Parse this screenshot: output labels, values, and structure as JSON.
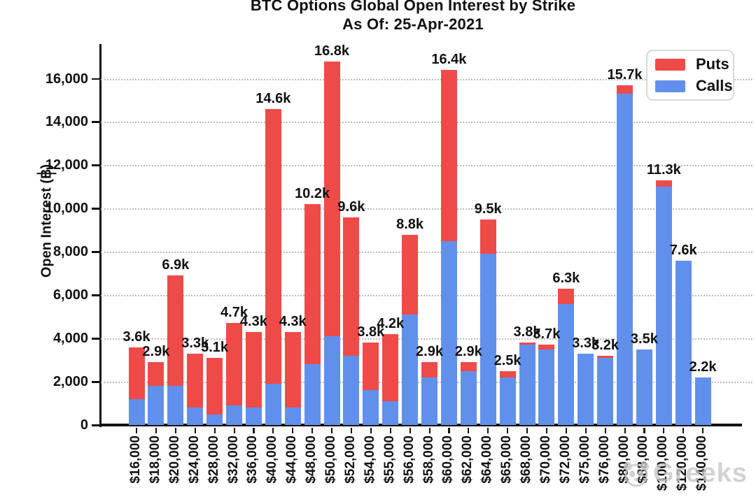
{
  "title": {
    "line1": "BTC Options Global Open Interest by Strike",
    "line2": "As Of: 25-Apr-2021"
  },
  "y_axis": {
    "label": "Open Interest (฿)",
    "tick_labels": [
      "0",
      "2,000",
      "4,000",
      "6,000",
      "8,000",
      "10,000",
      "12,000",
      "14,000",
      "16,000"
    ],
    "tick_values": [
      0,
      2000,
      4000,
      6000,
      8000,
      10000,
      12000,
      14000,
      16000
    ]
  },
  "legend": {
    "items": [
      {
        "label": "Puts",
        "color": "#ee4b48"
      },
      {
        "label": "Calls",
        "color": "#6190ec"
      }
    ]
  },
  "watermark": {
    "text": "Greeks"
  },
  "chart_data": {
    "type": "bar",
    "stacked": true,
    "title": "BTC Options Global Open Interest by Strike",
    "subtitle": "As Of: 25-Apr-2021",
    "xlabel": "",
    "ylabel": "Open Interest (฿)",
    "ylim": [
      0,
      17600
    ],
    "ytick_step": 2000,
    "grid": "dotted-horizontal",
    "legend_position": "top-right",
    "categories": [
      "$16,000",
      "$18,000",
      "$20,000",
      "$24,000",
      "$28,000",
      "$32,000",
      "$36,000",
      "$40,000",
      "$44,000",
      "$48,000",
      "$50,000",
      "$52,000",
      "$54,000",
      "$55,000",
      "$56,000",
      "$58,000",
      "$60,000",
      "$62,000",
      "$64,000",
      "$65,000",
      "$68,000",
      "$70,000",
      "$72,000",
      "$75,000",
      "$76,000",
      "$80,000",
      "$88,000",
      "$100,000",
      "$120,000",
      "$140,000"
    ],
    "series": [
      {
        "name": "Calls",
        "color": "#6190ec",
        "values": [
          1200,
          1800,
          1800,
          800,
          500,
          900,
          800,
          1900,
          800,
          2800,
          4100,
          3200,
          1600,
          1100,
          5100,
          2200,
          8500,
          2500,
          7900,
          2200,
          3700,
          3500,
          5600,
          3300,
          3100,
          15300,
          3500,
          11000,
          7600,
          2200
        ]
      },
      {
        "name": "Puts",
        "color": "#ee4b48",
        "values": [
          2400,
          1100,
          5100,
          2500,
          2600,
          3800,
          3500,
          12700,
          3500,
          7400,
          12700,
          6400,
          2200,
          3100,
          3700,
          700,
          7900,
          400,
          1600,
          300,
          100,
          200,
          700,
          0,
          100,
          400,
          0,
          300,
          0,
          0
        ]
      }
    ],
    "totals": [
      3600,
      2900,
      6900,
      3300,
      3100,
      4700,
      4300,
      14600,
      4300,
      10200,
      16800,
      9600,
      3800,
      4200,
      8800,
      2900,
      16400,
      2900,
      9500,
      2500,
      3800,
      3700,
      6300,
      3300,
      3200,
      15700,
      3500,
      11300,
      7600,
      2200
    ],
    "total_labels": [
      "3.6k",
      "2.9k",
      "6.9k",
      "3.3k",
      "3.1k",
      "4.7k",
      "4.3k",
      "14.6k",
      "4.3k",
      "10.2k",
      "16.8k",
      "9.6k",
      "3.8k",
      "4.2k",
      "8.8k",
      "2.9k",
      "16.4k",
      "2.9k",
      "9.5k",
      "2.5k",
      "3.8k",
      "3.7k",
      "6.3k",
      "3.3k",
      "3.2k",
      "15.7k",
      "3.5k",
      "11.3k",
      "7.6k",
      "2.2k"
    ]
  }
}
